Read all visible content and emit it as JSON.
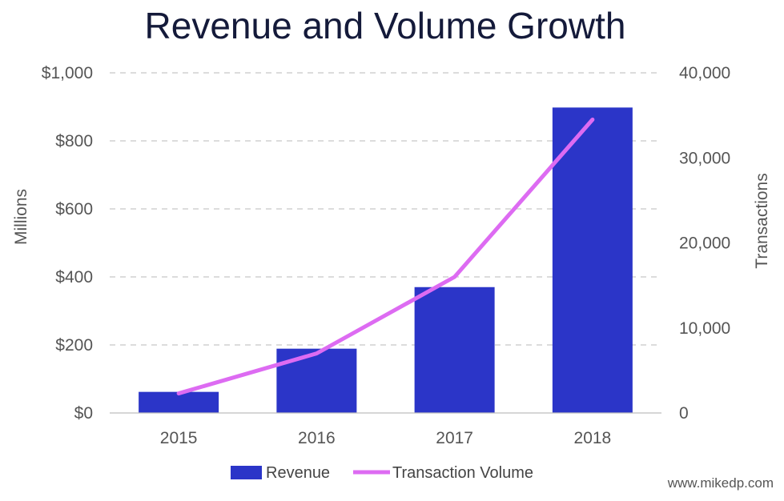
{
  "chart_data": {
    "type": "bar",
    "title": "Revenue and Volume Growth",
    "categories": [
      "2015",
      "2016",
      "2017",
      "2018"
    ],
    "series": [
      {
        "name": "Revenue",
        "type": "bar",
        "axis": "left",
        "color": "#2b35c8",
        "values": [
          62,
          189,
          370,
          898
        ]
      },
      {
        "name": "Transaction Volume",
        "type": "line",
        "axis": "right",
        "color": "#dd6bf2",
        "values": [
          2300,
          7000,
          16000,
          34500
        ]
      }
    ],
    "ylabel": "Millions",
    "y2label": "Transactions",
    "ylim": [
      0,
      1000
    ],
    "y2lim": [
      0,
      40000
    ],
    "yticks": [
      "$0",
      "$200",
      "$400",
      "$600",
      "$800",
      "$1,000"
    ],
    "y2ticks": [
      "0",
      "10,000",
      "20,000",
      "30,000",
      "40,000"
    ],
    "grid": true,
    "legend_position": "bottom"
  },
  "credit": "www.mikedp.com"
}
